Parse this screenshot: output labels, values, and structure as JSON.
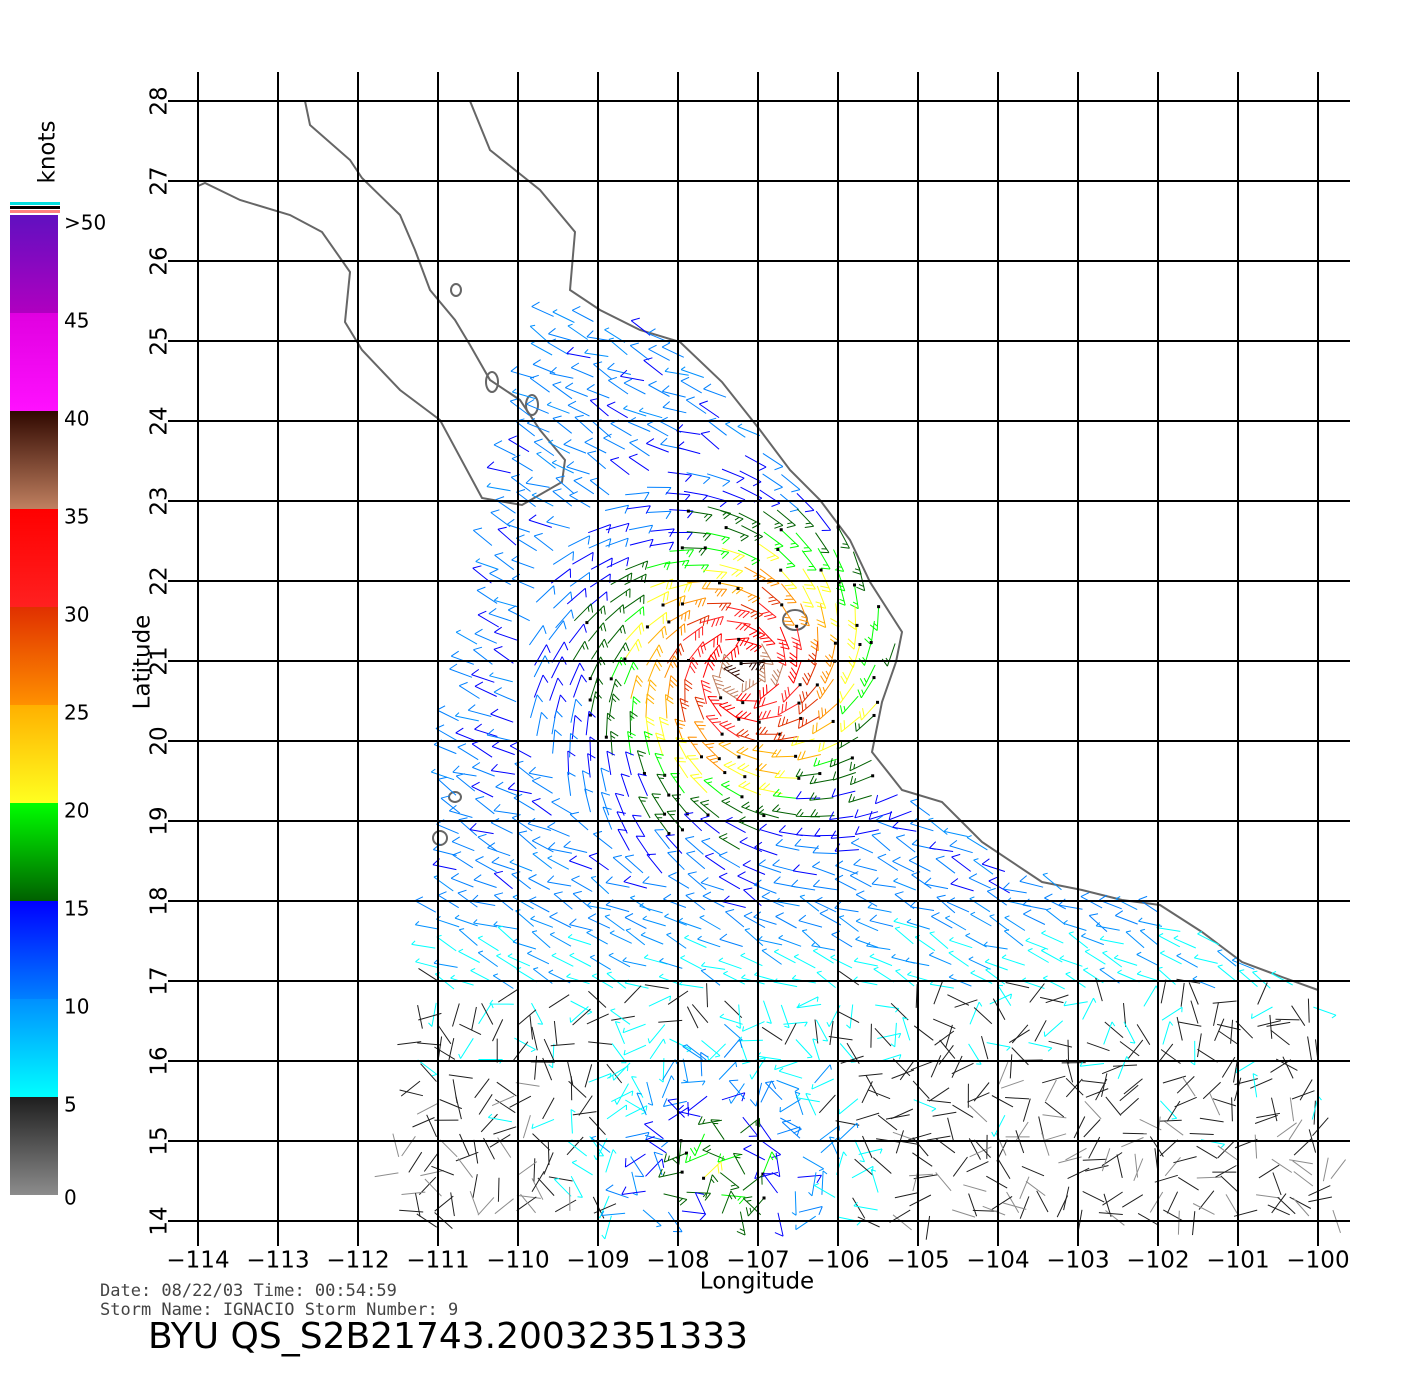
{
  "map": {
    "xlabel": "Longitude",
    "ylabel": "Latitude",
    "xlim": [
      -114,
      -100
    ],
    "ylim": [
      14,
      28
    ],
    "xticks": [
      {
        "value": -114,
        "label": "−114"
      },
      {
        "value": -113,
        "label": "−113"
      },
      {
        "value": -112,
        "label": "−112"
      },
      {
        "value": -111,
        "label": "−111"
      },
      {
        "value": -110,
        "label": "−110"
      },
      {
        "value": -109,
        "label": "−109"
      },
      {
        "value": -108,
        "label": "−108"
      },
      {
        "value": -107,
        "label": "−107"
      },
      {
        "value": -106,
        "label": "−106"
      },
      {
        "value": -105,
        "label": "−105"
      },
      {
        "value": -104,
        "label": "−104"
      },
      {
        "value": -103,
        "label": "−103"
      },
      {
        "value": -102,
        "label": "−102"
      },
      {
        "value": -101,
        "label": "−101"
      },
      {
        "value": -100,
        "label": "−100"
      }
    ],
    "yticks": [
      14,
      15,
      16,
      17,
      18,
      19,
      20,
      21,
      22,
      23,
      24,
      25,
      26,
      27,
      28
    ],
    "grid": true,
    "colorbar": {
      "title": "knots",
      "lim": [
        0,
        50
      ],
      "ticks": [
        0,
        5,
        10,
        15,
        20,
        25,
        30,
        35,
        40,
        45,
        {
          "value": 50,
          "label": ">50"
        }
      ],
      "colors": [
        [
          "#8c8c8c",
          "#1e1e1e"
        ],
        [
          "#00ffff",
          "#0090ff"
        ],
        [
          "#0080ff",
          "#0000ff"
        ],
        [
          "#006000",
          "#00ff00"
        ],
        [
          "#ffff20",
          "#ffb000"
        ],
        [
          "#ff9000",
          "#e03000"
        ],
        [
          "#ff2020",
          "#ff0000"
        ],
        [
          "#c08060",
          "#300800"
        ],
        [
          "#ff10ff",
          "#e000e0"
        ],
        [
          "#b000c0",
          "#6010c0"
        ]
      ]
    },
    "info": {
      "date_line": "Date: 08/22/03   Time: 00:54:59",
      "storm_line": "Storm  Name: IGNACIO   Storm  Number: 9",
      "title": "BYU  QS_S2B21743.20032351333"
    }
  }
}
